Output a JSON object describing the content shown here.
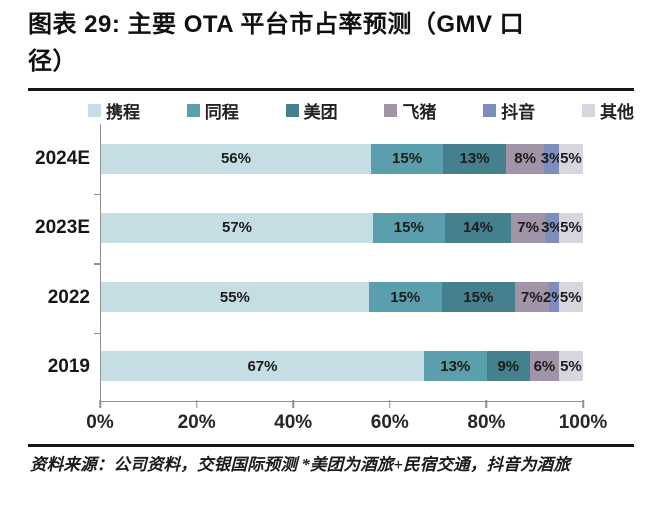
{
  "header": {
    "title": "图表 29: 主要 OTA 平台市占率预测（GMV 口\n径）"
  },
  "footer": {
    "source_note": "资料来源：公司资料，交银国际预测  *美团为酒旅+民宿交通，抖音为酒旅"
  },
  "chart_data": {
    "type": "bar",
    "variant": "horizontal-stacked",
    "title": "主要 OTA 平台市占率预测（GMV 口径）",
    "categories": [
      "2024E",
      "2023E",
      "2022",
      "2019"
    ],
    "series": [
      {
        "name": "携程",
        "color": "#c4dee3",
        "values": [
          56,
          57,
          55,
          67
        ]
      },
      {
        "name": "同程",
        "color": "#5b9fae",
        "values": [
          15,
          15,
          15,
          13
        ]
      },
      {
        "name": "美团",
        "color": "#44808d",
        "values": [
          13,
          14,
          15,
          9
        ]
      },
      {
        "name": "飞猪",
        "color": "#a094a8",
        "values": [
          8,
          7,
          7,
          6
        ]
      },
      {
        "name": "抖音",
        "color": "#7d8ebd",
        "values": [
          3,
          3,
          2,
          0
        ]
      },
      {
        "name": "其他",
        "color": "#d7d6de",
        "values": [
          5,
          5,
          5,
          5
        ]
      }
    ],
    "data_label_suffix": "%",
    "x_ticks": [
      "0%",
      "20%",
      "40%",
      "60%",
      "80%",
      "100%"
    ],
    "xlim": [
      0,
      100
    ],
    "grid": false,
    "legend_position": "top",
    "axis_color": "#8f8f8f"
  }
}
